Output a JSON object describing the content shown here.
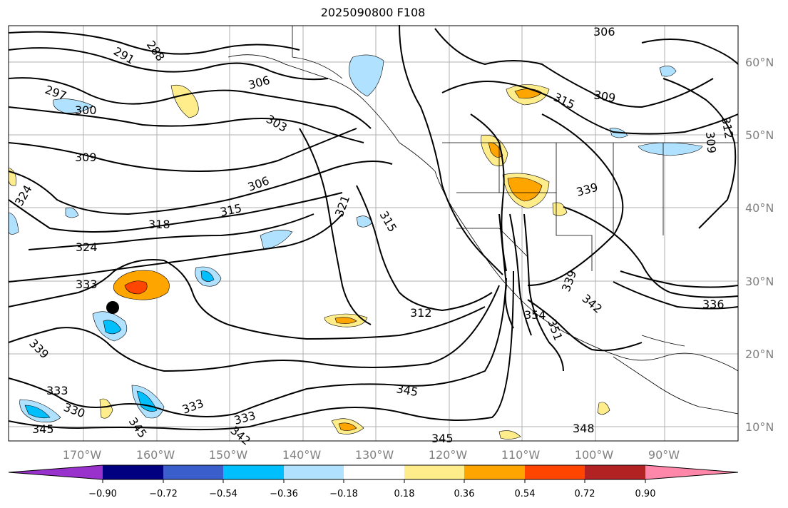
{
  "title": "2025090800 F108",
  "map": {
    "longitude_labels": [
      "170°W",
      "160°W",
      "150°W",
      "140°W",
      "130°W",
      "120°W",
      "110°W",
      "100°W",
      "90°W"
    ],
    "latitude_labels": [
      "60°N",
      "50°N",
      "40°N",
      "30°N",
      "20°N",
      "10°N"
    ],
    "contour_labels": [
      "288",
      "291",
      "297",
      "300",
      "306",
      "303",
      "309",
      "306",
      "315",
      "318",
      "324",
      "324",
      "333",
      "339",
      "333",
      "330",
      "345",
      "345",
      "333",
      "333",
      "342",
      "345",
      "345",
      "321",
      "315",
      "312",
      "309",
      "315",
      "339",
      "336",
      "354",
      "351",
      "348",
      "342",
      "339",
      "312",
      "306",
      "309"
    ],
    "marker": "storm-dot"
  },
  "colorbar": {
    "tick_labels": [
      "−0.90",
      "−0.72",
      "−0.54",
      "−0.36",
      "−0.18",
      "0.18",
      "0.36",
      "0.54",
      "0.72",
      "0.90"
    ],
    "colors": [
      "#9932cc",
      "#000080",
      "#3a5fcd",
      "#00bfff",
      "#b0e2ff",
      "#ffffff",
      "#ffec8b",
      "#ffa500",
      "#ff4500",
      "#b22222",
      "#ff88aa"
    ]
  }
}
